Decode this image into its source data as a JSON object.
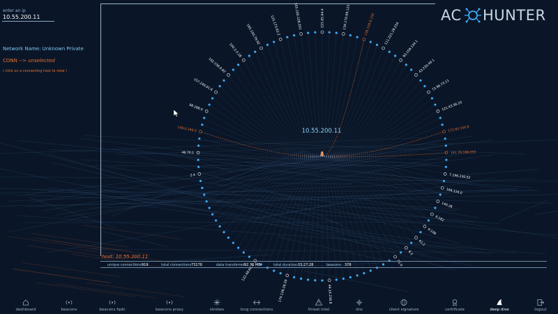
{
  "sidebar": {
    "ip_label": "enter an ip",
    "ip_value": "10.55.200.11",
    "network_name": "Network Name: Unknown Private",
    "conn_prefix": "CONN -->",
    "conn_state": "unselected",
    "conn_hint": "( click on a connecting host to view )"
  },
  "logo": {
    "left": "AC",
    "right": "HUNTER",
    "accent": "#3fa9f5"
  },
  "graph": {
    "center_ip": "10.55.200.11",
    "labeled_hosts": [
      {
        "text": "2.4",
        "highlight": false
      },
      {
        "text": "46.70.1",
        "highlight": false
      },
      {
        "text": "148.0.166.9",
        "highlight": true
      },
      {
        "text": "98.168.0",
        "highlight": false
      },
      {
        "text": "157.249.81.8",
        "highlight": false
      },
      {
        "text": "162.158.0.82",
        "highlight": false
      },
      {
        "text": "100.2.0.26",
        "highlight": false
      },
      {
        "text": "165.193.78.92",
        "highlight": false
      },
      {
        "text": "125.173.62.2",
        "highlight": false
      },
      {
        "text": "165.100.128.201",
        "highlight": false
      },
      {
        "text": "215.65.64.4",
        "highlight": false
      },
      {
        "text": "134.170.69.123",
        "highlight": false
      },
      {
        "text": "136.108.6.150",
        "highlight": true
      },
      {
        "text": "111.221.29.254",
        "highlight": false
      },
      {
        "text": "93.159.134.1",
        "highlight": false
      },
      {
        "text": "43.230.49.1",
        "highlight": false
      },
      {
        "text": "72.96.73.11",
        "highlight": false
      },
      {
        "text": "121.43.56.23",
        "highlight": false
      },
      {
        "text": "172.85.156.8",
        "highlight": true
      },
      {
        "text": "141.78.186.253",
        "highlight": true
      },
      {
        "text": "7.196.230.52",
        "highlight": false
      },
      {
        "text": "166.116.0",
        "highlight": false
      },
      {
        "text": "140.28",
        "highlight": false
      },
      {
        "text": "6.182",
        "highlight": false
      },
      {
        "text": "9.108",
        "highlight": false
      },
      {
        "text": "63.2",
        "highlight": false
      },
      {
        "text": "8.2",
        "highlight": false
      },
      {
        "text": "91.0",
        "highlight": false
      },
      {
        "text": "44.14.236.8",
        "highlight": false
      },
      {
        "text": "174.136.28.20",
        "highlight": false
      },
      {
        "text": "122.48.66.1",
        "highlight": false
      }
    ],
    "hl_color": "#e8702a",
    "line_color": "#5d7fa3",
    "node_color": "#3fa9f5"
  },
  "host_label": "host: 10.55.200.11",
  "stats": {
    "unique_label": "unique connections",
    "unique_value": "919",
    "total_label": "total connections",
    "total_value": "73178",
    "data_label": "data transferred",
    "data_value": "92.76 MB",
    "duration_label": "total duration",
    "duration_value": "03:27:28",
    "beacons_label": "beacons",
    "beacons_value": "378"
  },
  "nav": [
    {
      "label": "dashboard",
      "icon": "home-icon"
    },
    {
      "label": "beacons",
      "icon": "beacon-icon"
    },
    {
      "label": "beacons fqdn",
      "icon": "beacon-fqdn-icon"
    },
    {
      "label": "beacons proxy",
      "icon": "beacon-proxy-icon"
    },
    {
      "label": "strobes",
      "icon": "strobe-icon"
    },
    {
      "label": "long connections",
      "icon": "long-connection-icon"
    },
    {
      "label": "threat intel",
      "icon": "warning-icon"
    },
    {
      "label": "dns",
      "icon": "dns-icon"
    },
    {
      "label": "client signature",
      "icon": "globe-icon"
    },
    {
      "label": "certificate",
      "icon": "certificate-icon"
    },
    {
      "label": "deep dive",
      "icon": "shark-fin-icon",
      "active": true
    },
    {
      "label": "logout",
      "icon": "logout-icon"
    }
  ]
}
